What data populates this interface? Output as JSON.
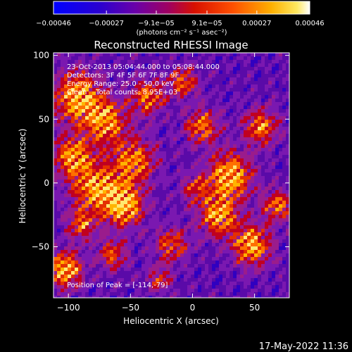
{
  "chart_data": {
    "type": "heatmap",
    "title": "Reconstructed RHESSI Image",
    "xlabel": "Heliocentric X (arcsec)",
    "ylabel": "Heliocentric Y (arcsec)",
    "xlim": [
      -112,
      78
    ],
    "ylim": [
      -90,
      102
    ],
    "xticks": [
      -100,
      -50,
      0,
      50
    ],
    "yticks": [
      -50,
      0,
      50,
      100
    ],
    "xtick_labels": [
      "−100",
      "−50",
      "0",
      "50"
    ],
    "ytick_labels": [
      "−50",
      "0",
      "50",
      "100"
    ],
    "colorbar": {
      "ticks": [
        -0.00046,
        -0.00027,
        -9.1e-05,
        9.1e-05,
        0.00027,
        0.00046
      ],
      "tick_labels": [
        "−0.00046",
        "−0.00027",
        "−9.1e−05",
        "9.1e−05",
        "0.00027",
        "0.00046"
      ],
      "range": [
        -0.00046,
        0.00046
      ],
      "unit_label": "(photons cm⁻² s⁻¹ asec⁻²)",
      "colors": [
        "#0000ff",
        "#5a00a0",
        "#8a00b8",
        "#b4002e",
        "#e42000",
        "#ff8800",
        "#ffd020",
        "#ffffff"
      ]
    },
    "annotations": [
      "23-Oct-2013 05:04:44.000 to 05:08:44.000",
      "Detectors: 3F 4F 5F 6F 7F 8F 9F",
      "Energy Range: 25.0 - 50.0 keV",
      "Clean    Total counts: 8.95E+03"
    ],
    "peak_label": "Position of Peak = [-114,-79]",
    "peak_position": [
      -114,
      -79
    ],
    "grid": false
  },
  "timestamp": "17-May-2022 11:36"
}
